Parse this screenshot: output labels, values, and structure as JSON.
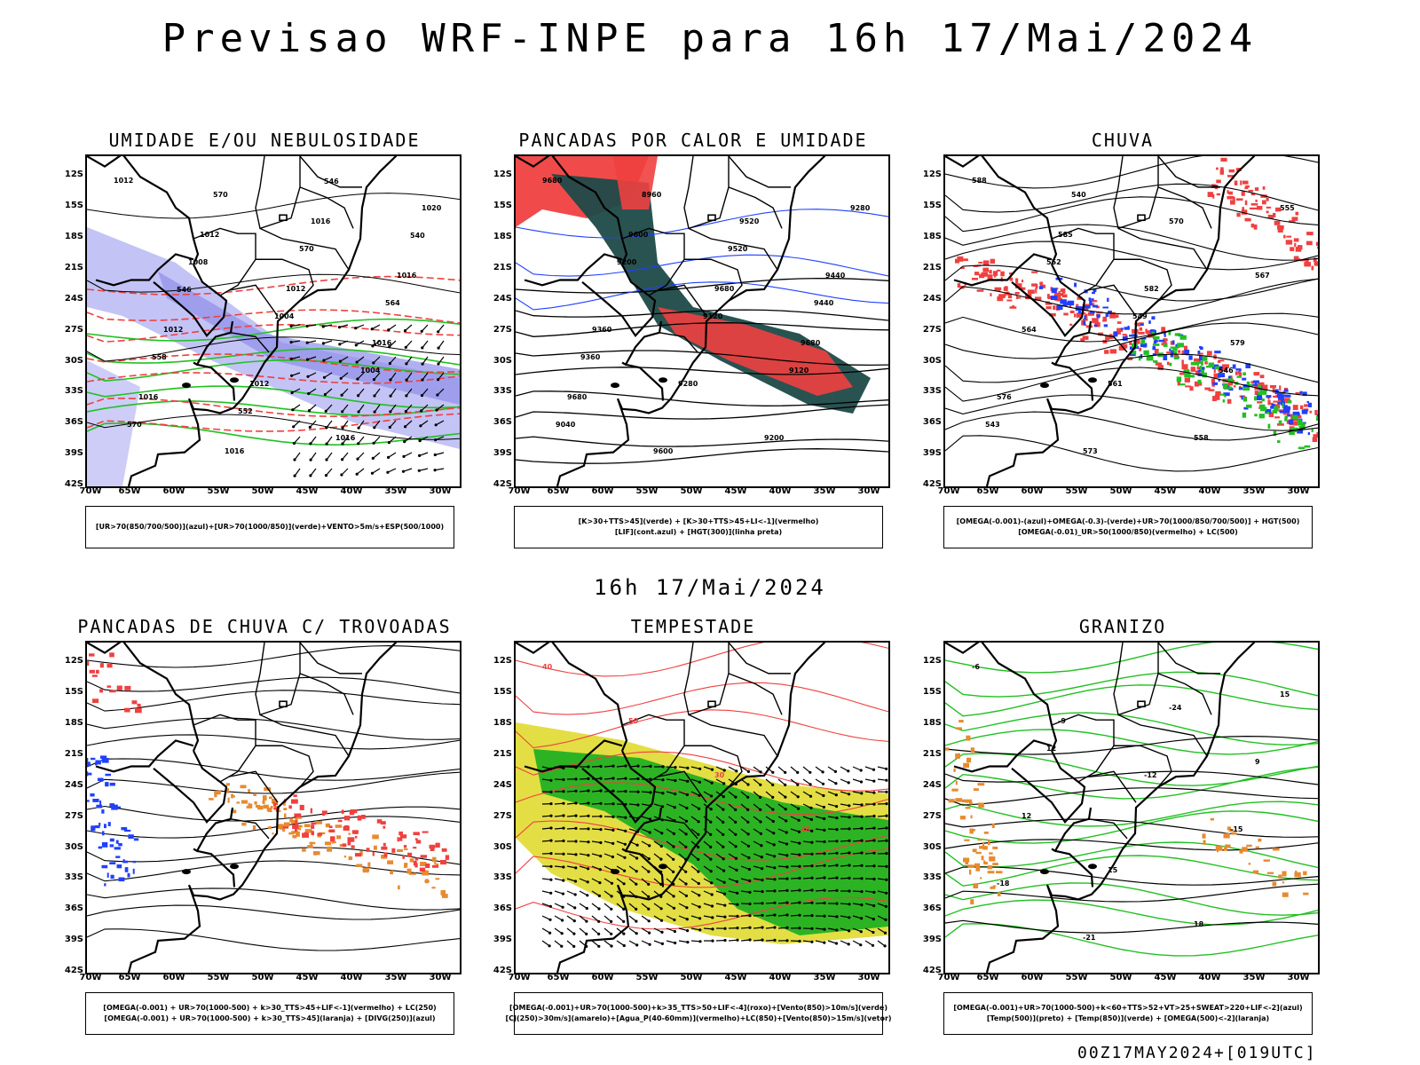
{
  "title": "Previsao WRF-INPE  para 16h 17/Mai/2024",
  "middle_title": "16h 17/Mai/2024",
  "footer": "00Z17MAY2024+[019UTC]",
  "colors": {
    "blue": "#2040ff",
    "light_blue": "#b8b8f4",
    "green": "#22c022",
    "red": "#f04040",
    "dark_teal": "#1d4a48",
    "yellow": "#e2dc3a",
    "orange": "#e88a30",
    "black": "#000000"
  },
  "lat_labels": [
    "12S",
    "15S",
    "18S",
    "21S",
    "24S",
    "27S",
    "30S",
    "33S",
    "36S",
    "39S",
    "42S"
  ],
  "lon_labels": [
    "70W",
    "65W",
    "60W",
    "55W",
    "50W",
    "45W",
    "40W",
    "35W",
    "30W"
  ],
  "panels": [
    {
      "title": "UMIDADE E/OU NEBULOSIDADE",
      "legend": [
        "[UR>70(850/700/500)](azul)+[UR>70(1000/850)](verde)+VENTO>5m/s+ESP(500/1000)"
      ],
      "contour_labels": [
        "1012",
        "1012",
        "1012",
        "1016",
        "1016",
        "1016",
        "1016",
        "1016",
        "1012",
        "1012",
        "1016",
        "1020",
        "1008",
        "1004",
        "1004",
        "570",
        "570",
        "570",
        "564",
        "558",
        "552",
        "546",
        "540",
        "546"
      ]
    },
    {
      "title": "PANCADAS POR CALOR E UMIDADE",
      "legend": [
        "[K>30+TTS>45](verde) + [K>30+TTS>45+LI<-1](vermelho)",
        "[LIF](cont.azul) + [HGT(300)](linha preta)"
      ],
      "contour_labels": [
        "9680",
        "9600",
        "9680",
        "9680",
        "9680",
        "9600",
        "9520",
        "9440",
        "9360",
        "9280",
        "9200",
        "9280",
        "9200",
        "9120",
        "9120",
        "9040",
        "8960",
        "9520",
        "9440",
        "9360"
      ]
    },
    {
      "title": "CHUVA",
      "legend": [
        "[OMEGA(-0.001)-(azul)+OMEGA(-0.3)-(verde)+UR>70(1000/850/700/500)] + HGT(500)",
        "[OMEGA(-0.01)_UR>50(1000/850)(vermelho) + LC(500)"
      ],
      "contour_labels": [
        "588",
        "585",
        "582",
        "579",
        "576",
        "573",
        "570",
        "567",
        "564",
        "561",
        "558",
        "555",
        "552",
        "549",
        "546",
        "543",
        "540"
      ]
    },
    {
      "title": "PANCADAS DE CHUVA C/ TROVOADAS",
      "legend": [
        "[OMEGA(-0.001) + UR>70(1000-500) + k>30_TTS>45+LIF<-1](vermelho) + LC(250)",
        "[OMEGA(-0.001) + UR>70(1000-500) + k>30_TTS>45](laranja) + [DIVG(250)](azul)"
      ],
      "contour_labels": []
    },
    {
      "title": "TEMPESTADE",
      "legend": [
        "[OMEGA(-0.001)+UR>70(1000-500)+k>35_TTS>50+LIF<-4](roxo)+[Vento(850)>10m/s](verde)",
        "[CJ(250)>30m/s](amarelo)+[Agua_P(40-60mm)](vermelho)+LC(850)+[Vento(850)>15m/s](vetor)"
      ],
      "contour_labels": [
        "40",
        "50",
        "30",
        "40"
      ]
    },
    {
      "title": "GRANIZO",
      "legend": [
        "[OMEGA(-0.001)+UR>70(1000-500)+k<60+TTS>52+VT>25+SWEAT>220+LIF<-2](azul)",
        "[Temp(500)](preto) + [Temp(850)](verde) + [OMEGA(500)<-2](laranja)"
      ],
      "contour_labels": [
        "-6",
        "-9",
        "-12",
        "-15",
        "-18",
        "-21",
        "-24",
        "9",
        "12",
        "15",
        "18",
        "15",
        "12"
      ]
    }
  ]
}
